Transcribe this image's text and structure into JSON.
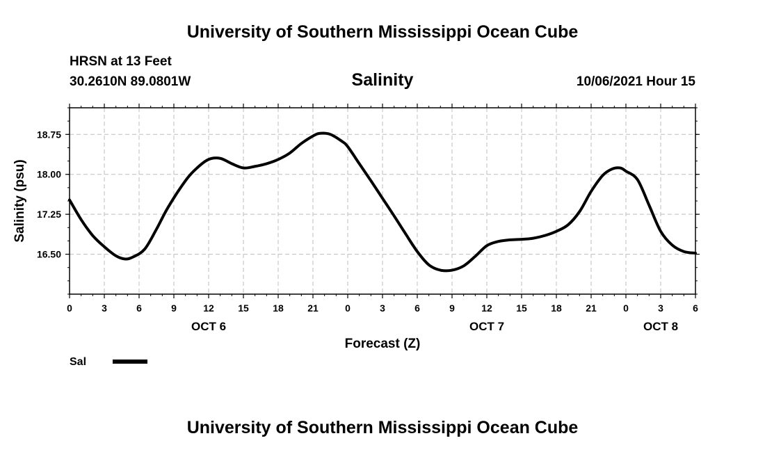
{
  "header": {
    "title_top": "University of Southern Mississippi Ocean Cube",
    "title_bottom": "University of Southern Mississippi Ocean Cube",
    "station": "HRSN at 13 Feet",
    "coordinates": "30.2610N  89.0801W",
    "datetime": "10/06/2021 Hour 15"
  },
  "colors": {
    "line": "#000000",
    "grid": "#bdbdbd",
    "background": "#ffffff"
  },
  "chart_data": {
    "type": "line",
    "title": "Salinity",
    "ylabel": "Salinity (psu)",
    "xlabel": "Forecast (Z)",
    "x_unit": "hours since 2021-10-06 00Z",
    "xlim": [
      0,
      54
    ],
    "ylim": [
      15.75,
      19.25
    ],
    "grid": true,
    "x_ticks": [
      0,
      3,
      6,
      9,
      12,
      15,
      18,
      21,
      24,
      27,
      30,
      33,
      36,
      39,
      42,
      45,
      48,
      51,
      54
    ],
    "x_tick_labels": [
      "0",
      "3",
      "6",
      "9",
      "12",
      "15",
      "18",
      "21",
      "0",
      "3",
      "6",
      "9",
      "12",
      "15",
      "18",
      "21",
      "0",
      "3",
      "6"
    ],
    "day_labels": [
      {
        "x": 12,
        "label": "OCT 6"
      },
      {
        "x": 36,
        "label": "OCT 7"
      },
      {
        "x": 51,
        "label": "OCT 8"
      }
    ],
    "y_ticks": [
      16.5,
      17.25,
      18.0,
      18.75
    ],
    "y_tick_labels": [
      "16.50",
      "17.25",
      "18.00",
      "18.75"
    ],
    "legend": [
      {
        "label": "Sal",
        "position": "bottom-left"
      }
    ],
    "series": [
      {
        "name": "Sal",
        "x": [
          0,
          1,
          2,
          3,
          4,
          4.8,
          5.5,
          6.5,
          7.5,
          8.5,
          10,
          11,
          12,
          13,
          14,
          15,
          16,
          17,
          18,
          19,
          20,
          21,
          21.6,
          22.5,
          23.5,
          24,
          25,
          26,
          27,
          28,
          29,
          30,
          31,
          32,
          33,
          34,
          35,
          36,
          37,
          38,
          39,
          40,
          41,
          42,
          43,
          44,
          45,
          46,
          46.8,
          47.5,
          48,
          49,
          50,
          51,
          52,
          53,
          54
        ],
        "y": [
          17.52,
          17.15,
          16.85,
          16.64,
          16.47,
          16.41,
          16.45,
          16.6,
          16.97,
          17.38,
          17.88,
          18.12,
          18.28,
          18.3,
          18.2,
          18.12,
          18.15,
          18.2,
          18.28,
          18.4,
          18.58,
          18.72,
          18.77,
          18.75,
          18.62,
          18.52,
          18.2,
          17.88,
          17.55,
          17.22,
          16.88,
          16.55,
          16.3,
          16.2,
          16.2,
          16.28,
          16.46,
          16.66,
          16.74,
          16.77,
          16.78,
          16.8,
          16.85,
          16.93,
          17.05,
          17.3,
          17.68,
          17.98,
          18.1,
          18.12,
          18.06,
          17.9,
          17.42,
          16.93,
          16.67,
          16.55,
          16.52
        ]
      }
    ]
  }
}
